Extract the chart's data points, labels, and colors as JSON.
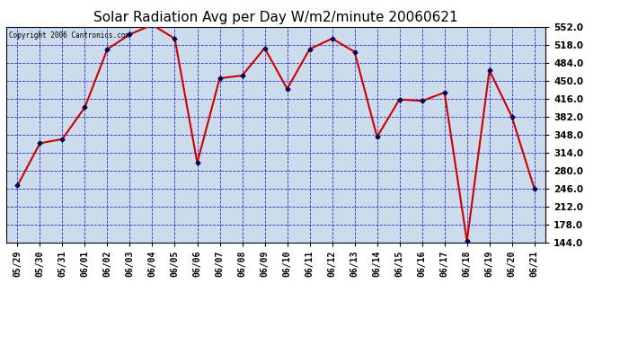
{
  "title": "Solar Radiation Avg per Day W/m2/minute 20060621",
  "copyright_text": "Copyright 2006 Cantronics.com",
  "dates": [
    "05/29",
    "05/30",
    "05/31",
    "06/01",
    "06/02",
    "06/03",
    "06/04",
    "06/05",
    "06/06",
    "06/07",
    "06/08",
    "06/09",
    "06/10",
    "06/11",
    "06/12",
    "06/13",
    "06/14",
    "06/15",
    "06/16",
    "06/17",
    "06/18",
    "06/19",
    "06/20",
    "06/21"
  ],
  "values": [
    252,
    332,
    340,
    400,
    510,
    538,
    556,
    530,
    295,
    455,
    460,
    512,
    435,
    510,
    530,
    505,
    344,
    415,
    412,
    428,
    147,
    470,
    382,
    246
  ],
  "line_color": "#cc0000",
  "marker_color": "#000055",
  "bg_color": "#ccdcec",
  "grid_color": "#0000cc",
  "title_fontsize": 11,
  "ylim_min": 144.0,
  "ylim_max": 552.0,
  "yticks": [
    144.0,
    178.0,
    212.0,
    246.0,
    280.0,
    314.0,
    348.0,
    382.0,
    416.0,
    450.0,
    484.0,
    518.0,
    552.0
  ]
}
